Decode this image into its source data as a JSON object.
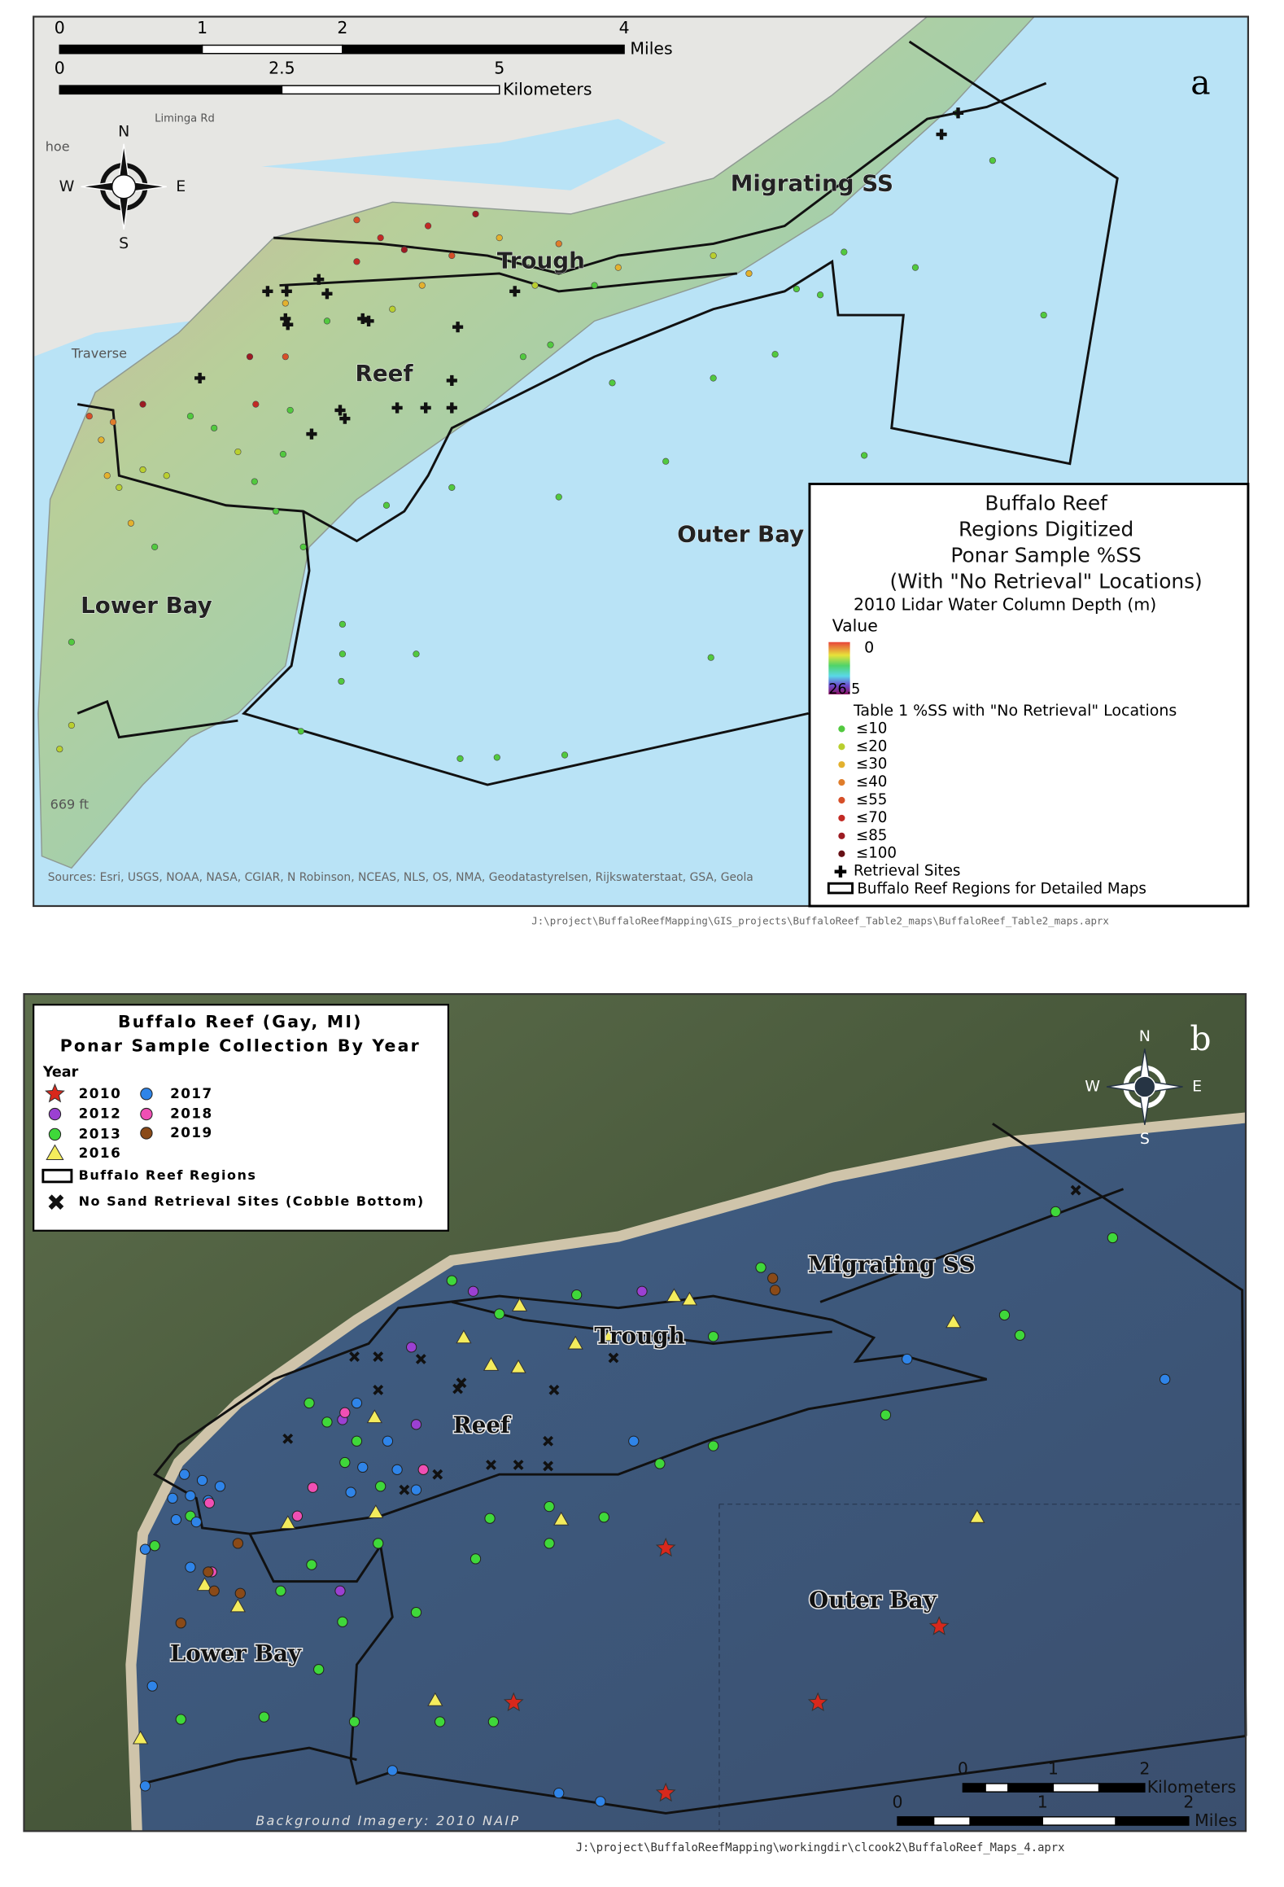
{
  "panel_a": {
    "label": "a",
    "scale_miles": {
      "ticks": [
        "0",
        "1",
        "2",
        "4"
      ],
      "unit": "Miles"
    },
    "scale_km": {
      "ticks": [
        "0",
        "2.5",
        "5"
      ],
      "unit": "Kilometers"
    },
    "compass": {
      "n": "N",
      "s": "S",
      "e": "E",
      "w": "W"
    },
    "basemap_labels": [
      "Liminga Rd",
      "hoe",
      "Traverse",
      "669 ft"
    ],
    "regions": [
      "Migrating SS",
      "Trough",
      "Reef",
      "Outer Bay",
      "Lower Bay"
    ],
    "legend": {
      "title": [
        "Buffalo Reef",
        "Regions Digitized",
        "Ponar Sample %SS",
        "(With \"No Retrieval\" Locations)"
      ],
      "raster_title": "2010 Lidar Water Column Depth (m)",
      "raster_value": "Value",
      "raster_high": "0",
      "raster_low": "26.5",
      "points_title": "Table 1 %SS with \"No Retrieval\" Locations",
      "classes": [
        {
          "label": "≤10",
          "color": "#52c93f"
        },
        {
          "label": "≤20",
          "color": "#b9cf2f"
        },
        {
          "label": "≤30",
          "color": "#e3b12e"
        },
        {
          "label": "≤40",
          "color": "#df7d2b"
        },
        {
          "label": "≤55",
          "color": "#d64f28"
        },
        {
          "label": "≤70",
          "color": "#c22a24"
        },
        {
          "label": "≤85",
          "color": "#9c1b22"
        },
        {
          "label": "≤100",
          "color": "#661015"
        }
      ],
      "retrieval": "Retrieval Sites",
      "regions": "Buffalo Reef Regions for Detailed Maps"
    },
    "source": "Sources: Esri, USGS, NOAA, NASA, CGIAR, N Robinson, NCEAS, NLS, OS, NMA, Geodatastyrelsen, Rijkswaterstaat, GSA, Geola",
    "path": "J:\\project\\BuffaloReefMapping\\GIS_projects\\BuffaloReef_Table2_maps\\BuffaloReef_Table2_maps.aprx"
  },
  "panel_b": {
    "label": "b",
    "legend": {
      "title": [
        "Buffalo Reef (Gay, MI)",
        "Ponar Sample Collection By Year"
      ],
      "year_heading": "Year",
      "years": [
        {
          "name": "2010",
          "color": "#d8281c",
          "shape": "star"
        },
        {
          "name": "2012",
          "color": "#9b40d2",
          "shape": "circle"
        },
        {
          "name": "2013",
          "color": "#3fd83a",
          "shape": "circle"
        },
        {
          "name": "2016",
          "color": "#f4ec5c",
          "shape": "triangle"
        },
        {
          "name": "2017",
          "color": "#2f84e8",
          "shape": "circle"
        },
        {
          "name": "2018",
          "color": "#f04fb4",
          "shape": "circle"
        },
        {
          "name": "2019",
          "color": "#8a4a18",
          "shape": "circle"
        }
      ],
      "regions": "Buffalo Reef Regions",
      "no_sand": "No Sand Retrieval Sites (Cobble Bottom)"
    },
    "compass": {
      "n": "N",
      "s": "S",
      "e": "E",
      "w": "W"
    },
    "regions": [
      "Migrating SS",
      "Trough",
      "Reef",
      "Outer Bay",
      "Lower Bay"
    ],
    "scale_km": {
      "ticks": [
        "0",
        "1",
        "2"
      ],
      "unit": "Kilometers"
    },
    "scale_miles": {
      "ticks": [
        "0",
        "1",
        "2"
      ],
      "unit": "Miles"
    },
    "imagery": "Background Imagery: 2010 NAIP",
    "path": "J:\\project\\BuffaloReefMapping\\workingdir\\clcook2\\BuffaloReef_Maps_4.aprx"
  }
}
